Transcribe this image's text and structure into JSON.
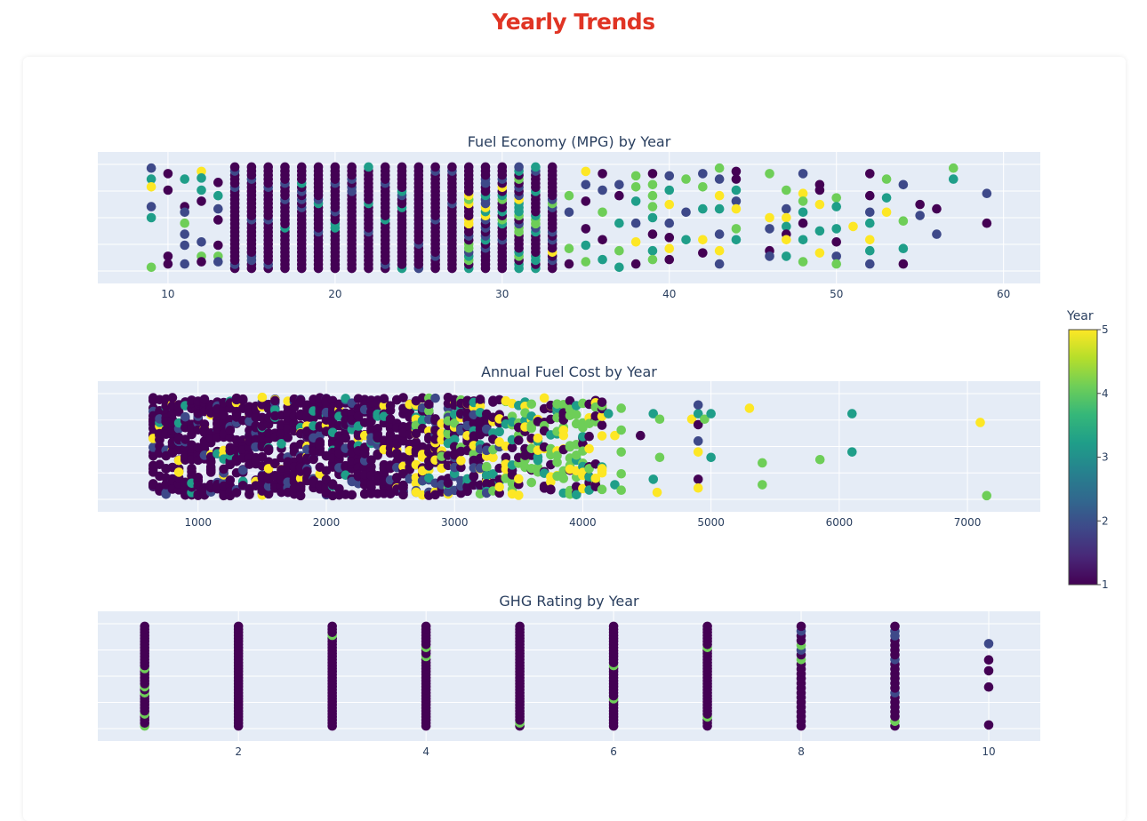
{
  "page": {
    "title": "Yearly Trends"
  },
  "colors": {
    "title": "#e03424",
    "plot_bg": "#e5ecf6",
    "grid": "#ffffff",
    "text": "#2a3f5f",
    "colorscale": [
      "#440154",
      "#482878",
      "#3e4989",
      "#31688e",
      "#26828e",
      "#1f9e89",
      "#35b779",
      "#6ece58",
      "#b5de2b",
      "#fde725"
    ]
  },
  "chart_data": [
    {
      "type": "scatter",
      "title": "Fuel Economy (MPG) by Year",
      "x_ticks": [
        10,
        20,
        30,
        40,
        50,
        60
      ],
      "xlim": [
        5.8,
        62.2
      ],
      "y_jitter_range": [
        -0.5,
        0.5
      ],
      "grid": true,
      "points": [
        {
          "x": 9,
          "y": 0.45,
          "year": 2
        },
        {
          "x": 9,
          "y": 0.35,
          "year": 3
        },
        {
          "x": 9,
          "y": 0.28,
          "year": 5
        },
        {
          "x": 9,
          "y": 0.1,
          "year": 2
        },
        {
          "x": 9,
          "y": 0.0,
          "year": 3
        },
        {
          "x": 9,
          "y": -0.45,
          "year": 4
        },
        {
          "x": 10,
          "y": 0.4,
          "year": 1
        },
        {
          "x": 10,
          "y": 0.25,
          "year": 1
        },
        {
          "x": 10,
          "y": -0.35,
          "year": 1
        },
        {
          "x": 10,
          "y": -0.42,
          "year": 1
        },
        {
          "x": 11,
          "y": 0.35,
          "year": 3
        },
        {
          "x": 11,
          "y": 0.1,
          "year": 1
        },
        {
          "x": 11,
          "y": 0.05,
          "year": 2
        },
        {
          "x": 11,
          "y": -0.05,
          "year": 4
        },
        {
          "x": 11,
          "y": -0.15,
          "year": 2
        },
        {
          "x": 11,
          "y": -0.25,
          "year": 2
        },
        {
          "x": 11,
          "y": -0.42,
          "year": 2
        },
        {
          "x": 12,
          "y": 0.42,
          "year": 5
        },
        {
          "x": 12,
          "y": 0.36,
          "year": 3
        },
        {
          "x": 12,
          "y": 0.25,
          "year": 3
        },
        {
          "x": 12,
          "y": 0.15,
          "year": 1
        },
        {
          "x": 12,
          "y": -0.22,
          "year": 2
        },
        {
          "x": 12,
          "y": -0.35,
          "year": 4
        },
        {
          "x": 12,
          "y": -0.4,
          "year": 1
        },
        {
          "x": 13,
          "y": 0.32,
          "year": 1
        },
        {
          "x": 13,
          "y": 0.2,
          "year": 3
        },
        {
          "x": 13,
          "y": 0.08,
          "year": 2
        },
        {
          "x": 13,
          "y": -0.02,
          "year": 1
        },
        {
          "x": 13,
          "y": -0.25,
          "year": 1
        },
        {
          "x": 13,
          "y": -0.35,
          "year": 4
        },
        {
          "x": 13,
          "y": -0.4,
          "year": 2
        },
        {
          "x": 34,
          "y": 0.2,
          "year": 4
        },
        {
          "x": 34,
          "y": 0.05,
          "year": 2
        },
        {
          "x": 34,
          "y": -0.28,
          "year": 4
        },
        {
          "x": 34,
          "y": -0.42,
          "year": 1
        },
        {
          "x": 35,
          "y": 0.42,
          "year": 5
        },
        {
          "x": 35,
          "y": 0.3,
          "year": 2
        },
        {
          "x": 35,
          "y": 0.15,
          "year": 1
        },
        {
          "x": 35,
          "y": -0.1,
          "year": 1
        },
        {
          "x": 35,
          "y": -0.25,
          "year": 3
        },
        {
          "x": 35,
          "y": -0.4,
          "year": 4
        },
        {
          "x": 36,
          "y": 0.4,
          "year": 1
        },
        {
          "x": 36,
          "y": 0.25,
          "year": 2
        },
        {
          "x": 36,
          "y": 0.05,
          "year": 4
        },
        {
          "x": 36,
          "y": -0.2,
          "year": 1
        },
        {
          "x": 36,
          "y": -0.38,
          "year": 3
        },
        {
          "x": 37,
          "y": 0.3,
          "year": 2
        },
        {
          "x": 37,
          "y": 0.2,
          "year": 1
        },
        {
          "x": 37,
          "y": -0.05,
          "year": 3
        },
        {
          "x": 37,
          "y": -0.3,
          "year": 4
        },
        {
          "x": 37,
          "y": -0.45,
          "year": 3
        },
        {
          "x": 38,
          "y": 0.38,
          "year": 4
        },
        {
          "x": 38,
          "y": 0.28,
          "year": 4
        },
        {
          "x": 38,
          "y": 0.15,
          "year": 3
        },
        {
          "x": 38,
          "y": -0.05,
          "year": 2
        },
        {
          "x": 38,
          "y": -0.22,
          "year": 5
        },
        {
          "x": 38,
          "y": -0.42,
          "year": 1
        },
        {
          "x": 39,
          "y": 0.4,
          "year": 1
        },
        {
          "x": 39,
          "y": 0.3,
          "year": 4
        },
        {
          "x": 39,
          "y": 0.2,
          "year": 4
        },
        {
          "x": 39,
          "y": 0.1,
          "year": 4
        },
        {
          "x": 39,
          "y": 0.0,
          "year": 3
        },
        {
          "x": 39,
          "y": -0.15,
          "year": 1
        },
        {
          "x": 39,
          "y": -0.3,
          "year": 3
        },
        {
          "x": 39,
          "y": -0.38,
          "year": 4
        },
        {
          "x": 40,
          "y": 0.38,
          "year": 2
        },
        {
          "x": 40,
          "y": 0.25,
          "year": 3
        },
        {
          "x": 40,
          "y": 0.12,
          "year": 5
        },
        {
          "x": 40,
          "y": -0.05,
          "year": 2
        },
        {
          "x": 40,
          "y": -0.18,
          "year": 1
        },
        {
          "x": 40,
          "y": -0.28,
          "year": 5
        },
        {
          "x": 40,
          "y": -0.38,
          "year": 1
        },
        {
          "x": 41,
          "y": 0.35,
          "year": 4
        },
        {
          "x": 41,
          "y": 0.05,
          "year": 2
        },
        {
          "x": 41,
          "y": -0.2,
          "year": 3
        },
        {
          "x": 42,
          "y": 0.4,
          "year": 2
        },
        {
          "x": 42,
          "y": 0.28,
          "year": 4
        },
        {
          "x": 42,
          "y": 0.08,
          "year": 3
        },
        {
          "x": 42,
          "y": -0.2,
          "year": 5
        },
        {
          "x": 42,
          "y": -0.32,
          "year": 1
        },
        {
          "x": 43,
          "y": 0.45,
          "year": 4
        },
        {
          "x": 43,
          "y": 0.35,
          "year": 2
        },
        {
          "x": 43,
          "y": 0.2,
          "year": 5
        },
        {
          "x": 43,
          "y": 0.08,
          "year": 3
        },
        {
          "x": 43,
          "y": -0.15,
          "year": 2
        },
        {
          "x": 43,
          "y": -0.3,
          "year": 5
        },
        {
          "x": 43,
          "y": -0.42,
          "year": 2
        },
        {
          "x": 44,
          "y": 0.42,
          "year": 1
        },
        {
          "x": 44,
          "y": 0.35,
          "year": 1
        },
        {
          "x": 44,
          "y": 0.25,
          "year": 3
        },
        {
          "x": 44,
          "y": 0.15,
          "year": 2
        },
        {
          "x": 44,
          "y": 0.08,
          "year": 5
        },
        {
          "x": 44,
          "y": -0.1,
          "year": 4
        },
        {
          "x": 44,
          "y": -0.2,
          "year": 3
        },
        {
          "x": 46,
          "y": 0.4,
          "year": 4
        },
        {
          "x": 46,
          "y": 0.0,
          "year": 5
        },
        {
          "x": 46,
          "y": -0.1,
          "year": 2
        },
        {
          "x": 46,
          "y": -0.3,
          "year": 1
        },
        {
          "x": 46,
          "y": -0.35,
          "year": 2
        },
        {
          "x": 47,
          "y": 0.25,
          "year": 4
        },
        {
          "x": 47,
          "y": 0.08,
          "year": 2
        },
        {
          "x": 47,
          "y": 0.0,
          "year": 5
        },
        {
          "x": 47,
          "y": -0.08,
          "year": 3
        },
        {
          "x": 47,
          "y": -0.15,
          "year": 1
        },
        {
          "x": 47,
          "y": -0.2,
          "year": 5
        },
        {
          "x": 47,
          "y": -0.35,
          "year": 3
        },
        {
          "x": 48,
          "y": 0.4,
          "year": 2
        },
        {
          "x": 48,
          "y": 0.22,
          "year": 5
        },
        {
          "x": 48,
          "y": 0.15,
          "year": 4
        },
        {
          "x": 48,
          "y": 0.05,
          "year": 3
        },
        {
          "x": 48,
          "y": -0.05,
          "year": 1
        },
        {
          "x": 48,
          "y": -0.2,
          "year": 3
        },
        {
          "x": 48,
          "y": -0.4,
          "year": 4
        },
        {
          "x": 49,
          "y": 0.3,
          "year": 1
        },
        {
          "x": 49,
          "y": 0.25,
          "year": 1
        },
        {
          "x": 49,
          "y": 0.12,
          "year": 5
        },
        {
          "x": 49,
          "y": -0.12,
          "year": 3
        },
        {
          "x": 49,
          "y": -0.32,
          "year": 5
        },
        {
          "x": 50,
          "y": 0.18,
          "year": 4
        },
        {
          "x": 50,
          "y": 0.1,
          "year": 3
        },
        {
          "x": 50,
          "y": -0.1,
          "year": 3
        },
        {
          "x": 50,
          "y": -0.22,
          "year": 1
        },
        {
          "x": 50,
          "y": -0.35,
          "year": 2
        },
        {
          "x": 50,
          "y": -0.42,
          "year": 4
        },
        {
          "x": 51,
          "y": -0.08,
          "year": 5
        },
        {
          "x": 52,
          "y": 0.4,
          "year": 1
        },
        {
          "x": 52,
          "y": 0.2,
          "year": 1
        },
        {
          "x": 52,
          "y": 0.05,
          "year": 2
        },
        {
          "x": 52,
          "y": -0.05,
          "year": 3
        },
        {
          "x": 52,
          "y": -0.2,
          "year": 5
        },
        {
          "x": 52,
          "y": -0.3,
          "year": 3
        },
        {
          "x": 52,
          "y": -0.42,
          "year": 2
        },
        {
          "x": 53,
          "y": 0.35,
          "year": 4
        },
        {
          "x": 53,
          "y": 0.18,
          "year": 3
        },
        {
          "x": 53,
          "y": 0.05,
          "year": 5
        },
        {
          "x": 54,
          "y": 0.3,
          "year": 2
        },
        {
          "x": 54,
          "y": -0.03,
          "year": 4
        },
        {
          "x": 54,
          "y": -0.28,
          "year": 3
        },
        {
          "x": 54,
          "y": -0.42,
          "year": 1
        },
        {
          "x": 55,
          "y": 0.12,
          "year": 1
        },
        {
          "x": 55,
          "y": 0.02,
          "year": 2
        },
        {
          "x": 56,
          "y": 0.08,
          "year": 1
        },
        {
          "x": 56,
          "y": -0.15,
          "year": 2
        },
        {
          "x": 57,
          "y": 0.45,
          "year": 4
        },
        {
          "x": 57,
          "y": 0.35,
          "year": 3
        },
        {
          "x": 59,
          "y": 0.22,
          "year": 2
        },
        {
          "x": 59,
          "y": -0.05,
          "year": 1
        }
      ]
    },
    {
      "type": "scatter",
      "title": "Annual Fuel Cost by Year",
      "x_ticks": [
        1000,
        2000,
        3000,
        4000,
        5000,
        6000,
        7000
      ],
      "xlim": [
        218,
        7568
      ],
      "y_jitter_range": [
        -0.5,
        0.5
      ],
      "grid": true,
      "points": [
        {
          "x": 4200,
          "y": 0.3,
          "year": 3
        },
        {
          "x": 4250,
          "y": 0.1,
          "year": 5
        },
        {
          "x": 4250,
          "y": -0.35,
          "year": 3
        },
        {
          "x": 4300,
          "y": 0.35,
          "year": 4
        },
        {
          "x": 4300,
          "y": 0.15,
          "year": 4
        },
        {
          "x": 4300,
          "y": -0.05,
          "year": 4
        },
        {
          "x": 4300,
          "y": -0.25,
          "year": 4
        },
        {
          "x": 4300,
          "y": -0.4,
          "year": 4
        },
        {
          "x": 4450,
          "y": 0.1,
          "year": 1
        },
        {
          "x": 4550,
          "y": 0.3,
          "year": 3
        },
        {
          "x": 4550,
          "y": -0.3,
          "year": 3
        },
        {
          "x": 4580,
          "y": -0.42,
          "year": 5
        },
        {
          "x": 4600,
          "y": 0.25,
          "year": 4
        },
        {
          "x": 4600,
          "y": -0.1,
          "year": 4
        },
        {
          "x": 4850,
          "y": 0.25,
          "year": 5
        },
        {
          "x": 4900,
          "y": 0.3,
          "year": 3
        },
        {
          "x": 4900,
          "y": 0.38,
          "year": 2
        },
        {
          "x": 4900,
          "y": 0.2,
          "year": 1
        },
        {
          "x": 4900,
          "y": 0.05,
          "year": 2
        },
        {
          "x": 4900,
          "y": -0.05,
          "year": 5
        },
        {
          "x": 4900,
          "y": -0.3,
          "year": 1
        },
        {
          "x": 4900,
          "y": -0.38,
          "year": 5
        },
        {
          "x": 4950,
          "y": 0.25,
          "year": 4
        },
        {
          "x": 5000,
          "y": -0.1,
          "year": 3
        },
        {
          "x": 5000,
          "y": 0.3,
          "year": 3
        },
        {
          "x": 5300,
          "y": 0.35,
          "year": 5
        },
        {
          "x": 5400,
          "y": -0.15,
          "year": 4
        },
        {
          "x": 5400,
          "y": -0.35,
          "year": 4
        },
        {
          "x": 5850,
          "y": -0.12,
          "year": 4
        },
        {
          "x": 6100,
          "y": 0.3,
          "year": 3
        },
        {
          "x": 6100,
          "y": -0.05,
          "year": 3
        },
        {
          "x": 7100,
          "y": 0.22,
          "year": 5
        },
        {
          "x": 7150,
          "y": -0.45,
          "year": 4
        }
      ]
    },
    {
      "type": "scatter",
      "title": "GHG Rating by Year",
      "x_ticks": [
        2,
        4,
        6,
        8,
        10
      ],
      "xlim": [
        0.5,
        10.55
      ],
      "y_jitter_range": [
        -0.5,
        0.5
      ],
      "grid": true,
      "points": [
        {
          "x": 10,
          "y": 0.3,
          "year": 2
        },
        {
          "x": 10,
          "y": 0.15,
          "year": 1
        },
        {
          "x": 10,
          "y": 0.05,
          "year": 1
        },
        {
          "x": 10,
          "y": -0.1,
          "year": 1
        },
        {
          "x": 10,
          "y": -0.45,
          "year": 1
        }
      ]
    }
  ],
  "colorbar": {
    "title": "Year",
    "ticks": [
      "1",
      "2",
      "3",
      "4",
      "5"
    ],
    "range": [
      1,
      5
    ]
  }
}
